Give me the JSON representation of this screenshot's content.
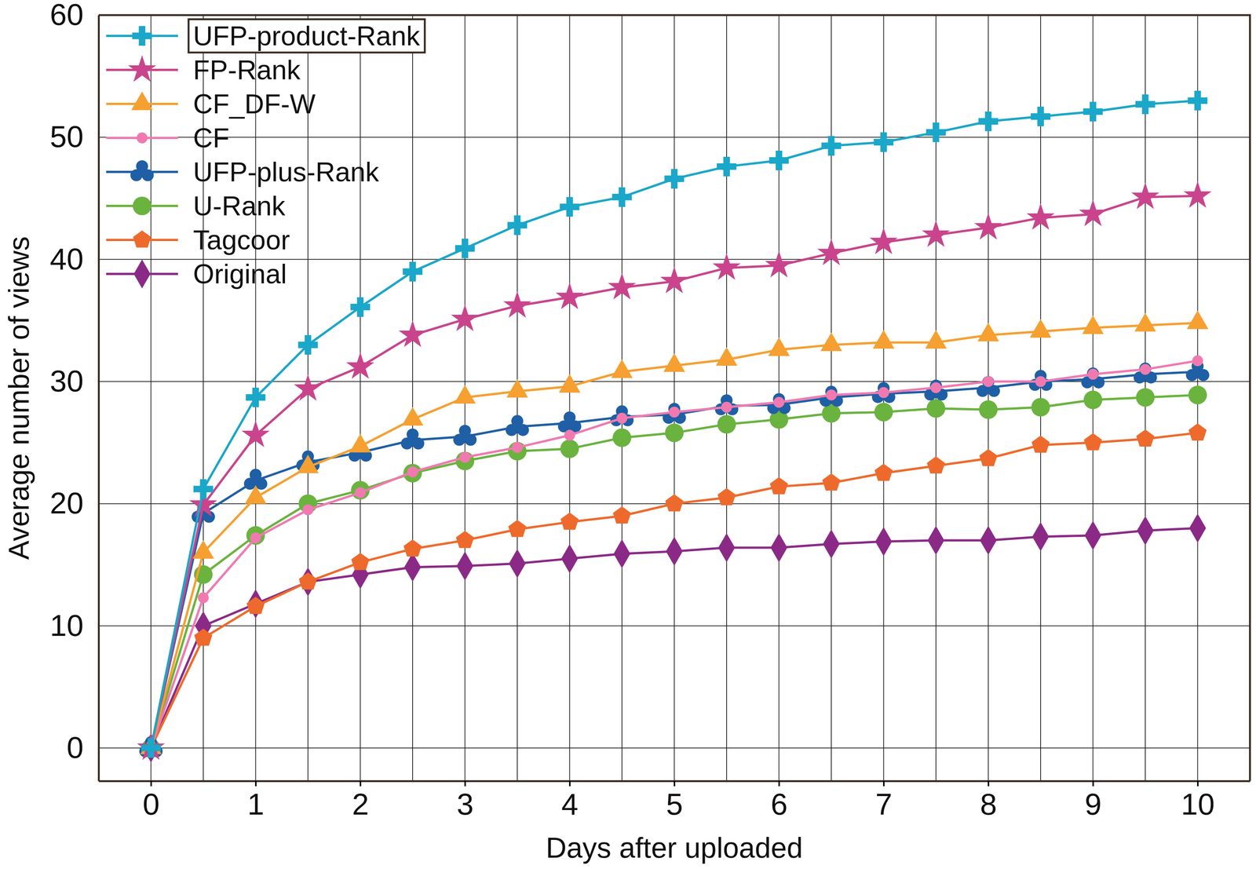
{
  "chart_data": {
    "type": "line",
    "x_label": "Days after uploaded",
    "y_label": "Average number of views",
    "x": [
      0,
      0.5,
      1,
      1.5,
      2,
      2.5,
      3,
      3.5,
      4,
      4.5,
      5,
      5.5,
      6,
      6.5,
      7,
      7.5,
      8,
      8.5,
      9,
      9.5,
      10
    ],
    "xlim": [
      -0.5,
      10.5
    ],
    "xticks": [
      0,
      1,
      2,
      3,
      4,
      5,
      6,
      7,
      8,
      9,
      10
    ],
    "ylim": [
      -2.7,
      60
    ],
    "yticks": [
      0,
      10,
      20,
      30,
      40,
      50,
      60
    ],
    "grid": true,
    "legend": "upper left",
    "series": [
      {
        "name": "UFP-product-Rank",
        "color": "#1aa7c9",
        "marker": "cross",
        "values": [
          0,
          21.2,
          28.7,
          33.0,
          36.1,
          39.0,
          40.9,
          42.8,
          44.3,
          45.1,
          46.6,
          47.6,
          48.1,
          49.3,
          49.6,
          50.4,
          51.3,
          51.7,
          52.1,
          52.7,
          53.0
        ]
      },
      {
        "name": "FP-Rank",
        "color": "#c9448c",
        "marker": "star",
        "values": [
          0,
          19.9,
          25.6,
          29.4,
          31.2,
          33.8,
          35.1,
          36.2,
          36.9,
          37.7,
          38.2,
          39.3,
          39.5,
          40.5,
          41.4,
          42.0,
          42.6,
          43.4,
          43.7,
          45.1,
          45.2
        ]
      },
      {
        "name": "CF_DF-W",
        "color": "#f5a031",
        "marker": "triangle",
        "values": [
          0,
          16.0,
          20.5,
          23.0,
          24.7,
          26.9,
          28.7,
          29.2,
          29.6,
          30.8,
          31.3,
          31.8,
          32.6,
          33.0,
          33.2,
          33.2,
          33.8,
          34.1,
          34.4,
          34.6,
          34.8
        ]
      },
      {
        "name": "CF",
        "color": "#f07ab0",
        "marker": "circle",
        "values": [
          0,
          12.3,
          17.2,
          19.5,
          20.9,
          22.6,
          23.8,
          24.6,
          25.6,
          27.0,
          27.5,
          27.9,
          28.3,
          28.9,
          29.1,
          29.5,
          30.0,
          30.0,
          30.6,
          31.0,
          31.7
        ]
      },
      {
        "name": "UFP-plus-Rank",
        "color": "#1f5fa5",
        "marker": "club",
        "values": [
          0,
          19.2,
          21.9,
          23.4,
          24.2,
          25.2,
          25.5,
          26.3,
          26.6,
          27.1,
          27.3,
          28.0,
          28.1,
          28.7,
          29.0,
          29.2,
          29.5,
          30.0,
          30.2,
          30.6,
          30.8
        ]
      },
      {
        "name": "U-Rank",
        "color": "#6ab33f",
        "marker": "big-circle",
        "values": [
          0,
          14.2,
          17.4,
          20.0,
          21.1,
          22.5,
          23.5,
          24.3,
          24.5,
          25.4,
          25.8,
          26.5,
          26.9,
          27.4,
          27.5,
          27.8,
          27.7,
          27.9,
          28.5,
          28.7,
          28.9
        ]
      },
      {
        "name": "Tagcoor",
        "color": "#ee6a2c",
        "marker": "pentagon",
        "values": [
          0,
          9.0,
          11.6,
          13.6,
          15.2,
          16.3,
          17.0,
          17.9,
          18.5,
          19.0,
          20.0,
          20.5,
          21.4,
          21.7,
          22.5,
          23.1,
          23.7,
          24.8,
          25.0,
          25.3,
          25.8
        ]
      },
      {
        "name": "Original",
        "color": "#8b2a86",
        "marker": "diamond",
        "values": [
          0,
          10.0,
          11.8,
          13.6,
          14.2,
          14.8,
          14.9,
          15.1,
          15.5,
          15.9,
          16.1,
          16.4,
          16.4,
          16.7,
          16.9,
          17.0,
          17.0,
          17.3,
          17.4,
          17.8,
          18.0
        ]
      }
    ]
  }
}
